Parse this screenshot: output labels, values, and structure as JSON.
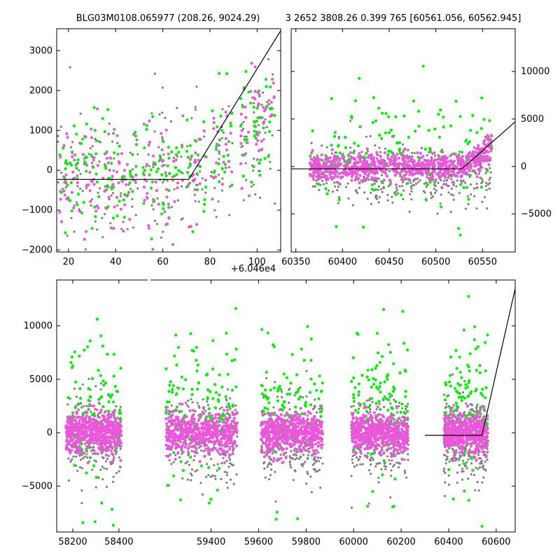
{
  "chart_data": [
    {
      "id": "panel-top-left",
      "type": "scatter",
      "title": "BLG03M0108.065977 (208.26, 9024.29)",
      "x_offset_label": "+6.046e4",
      "xlim": [
        15,
        110
      ],
      "ylim": [
        -2050,
        3550
      ],
      "x_ticks": [
        20,
        40,
        60,
        80,
        100
      ],
      "y_ticks": [
        -2000,
        -1000,
        0,
        1000,
        2000,
        3000
      ],
      "y_axis_side": "left",
      "model_line": {
        "x": [
          15,
          71,
          110
        ],
        "y": [
          -230,
          -230,
          3500
        ]
      },
      "scatter_note": "light curve cloud: dense points near 0 with scatter, rising after x~70",
      "season_centers": [
        20,
        28,
        35,
        45,
        56,
        64,
        74,
        85,
        97,
        103
      ],
      "series": [
        {
          "name": "grey",
          "color": "#808080"
        },
        {
          "name": "green",
          "color": "#00ee00"
        },
        {
          "name": "magenta",
          "color": "#ee55dd"
        }
      ]
    },
    {
      "id": "panel-top-right",
      "type": "scatter",
      "title": "3 2652 3808.26 0.399 765 [60561.056, 60562.945]",
      "xlim": [
        60345,
        60585
      ],
      "ylim": [
        -9000,
        14500
      ],
      "x_ticks": [
        60350,
        60400,
        60450,
        60500,
        60550
      ],
      "y_ticks": [
        -5000,
        0,
        5000,
        10000
      ],
      "y_axis_side": "right",
      "model_line": {
        "x": [
          60345,
          60528,
          60585
        ],
        "y": [
          -250,
          -250,
          4700
        ]
      },
      "x_range": [
        60365,
        60560
      ],
      "series": [
        {
          "name": "grey",
          "color": "#808080"
        },
        {
          "name": "green",
          "color": "#00ee00"
        },
        {
          "name": "magenta",
          "color": "#ee55dd"
        }
      ]
    },
    {
      "id": "panel-bottom",
      "type": "scatter",
      "title": "",
      "xlim": [
        58130,
        60680
      ],
      "ylim": [
        -9300,
        14300
      ],
      "x_ticks": [
        58200,
        58400,
        59400,
        59600,
        59800,
        60000,
        60200,
        60400,
        60600
      ],
      "y_ticks": [
        -5000,
        0,
        5000,
        10000
      ],
      "y_axis_side": "left",
      "season_ranges": [
        [
          58170,
          58410
        ],
        [
          59210,
          59510
        ],
        [
          59610,
          59870
        ],
        [
          59990,
          60230
        ],
        [
          60380,
          60565
        ]
      ],
      "model_line": {
        "x": [
          60300,
          60540,
          60680
        ],
        "y": [
          -250,
          -250,
          13500
        ]
      },
      "series": [
        {
          "name": "grey",
          "color": "#808080"
        },
        {
          "name": "green",
          "color": "#00ee00"
        },
        {
          "name": "magenta",
          "color": "#ee55dd"
        }
      ]
    }
  ]
}
